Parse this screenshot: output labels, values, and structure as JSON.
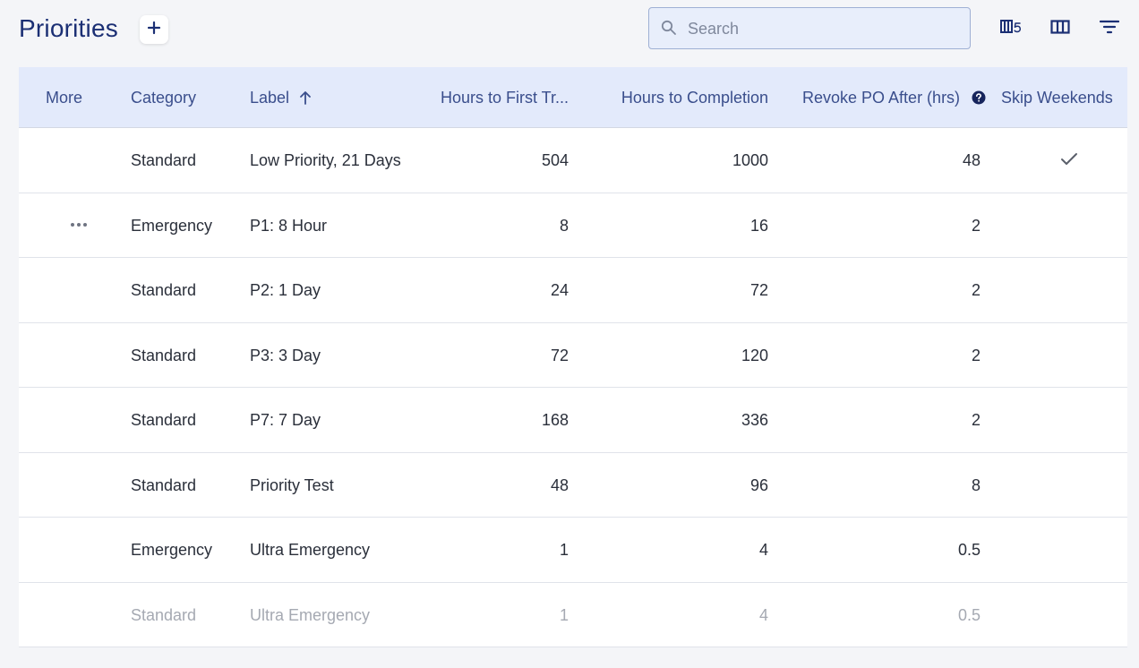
{
  "header": {
    "title": "Priorities",
    "search_placeholder": "Search"
  },
  "icons": {
    "add": "plus-icon",
    "search": "search-icon",
    "toolbar": [
      "board-count-icon",
      "columns-icon",
      "filter-icon"
    ],
    "row_more": "more-horizontal-icon",
    "skip_weekends_true": "check-icon",
    "help": "help-circle-icon"
  },
  "colors": {
    "title": "#1b2f74",
    "header_bg": "#e3eafb",
    "header_text": "#3a4e8c",
    "page_bg": "#f4f5f8"
  },
  "table": {
    "columns": {
      "more": "More",
      "category": "Category",
      "label": "Label",
      "hours_first": "Hours to First Tr...",
      "hours_completion": "Hours to Completion",
      "revoke": "Revoke PO After (hrs)",
      "skip_weekends": "Skip Weekends"
    },
    "sort": {
      "column": "label",
      "direction": "ascending"
    },
    "rows": [
      {
        "category": "Standard",
        "label": "Low Priority, 21 Days",
        "hours_first": "504",
        "hours_completion": "1000",
        "revoke": "48",
        "skip_weekends": true,
        "show_more": false,
        "faded": false
      },
      {
        "category": "Emergency",
        "label": "P1: 8 Hour",
        "hours_first": "8",
        "hours_completion": "16",
        "revoke": "2",
        "skip_weekends": false,
        "show_more": true,
        "faded": false
      },
      {
        "category": "Standard",
        "label": "P2: 1 Day",
        "hours_first": "24",
        "hours_completion": "72",
        "revoke": "2",
        "skip_weekends": false,
        "show_more": false,
        "faded": false
      },
      {
        "category": "Standard",
        "label": "P3: 3 Day",
        "hours_first": "72",
        "hours_completion": "120",
        "revoke": "2",
        "skip_weekends": false,
        "show_more": false,
        "faded": false
      },
      {
        "category": "Standard",
        "label": "P7: 7 Day",
        "hours_first": "168",
        "hours_completion": "336",
        "revoke": "2",
        "skip_weekends": false,
        "show_more": false,
        "faded": false
      },
      {
        "category": "Standard",
        "label": "Priority Test",
        "hours_first": "48",
        "hours_completion": "96",
        "revoke": "8",
        "skip_weekends": false,
        "show_more": false,
        "faded": false
      },
      {
        "category": "Emergency",
        "label": "Ultra Emergency",
        "hours_first": "1",
        "hours_completion": "4",
        "revoke": "0.5",
        "skip_weekends": false,
        "show_more": false,
        "faded": false
      },
      {
        "category": "Standard",
        "label": "Ultra Emergency",
        "hours_first": "1",
        "hours_completion": "4",
        "revoke": "0.5",
        "skip_weekends": false,
        "show_more": false,
        "faded": true
      }
    ]
  }
}
